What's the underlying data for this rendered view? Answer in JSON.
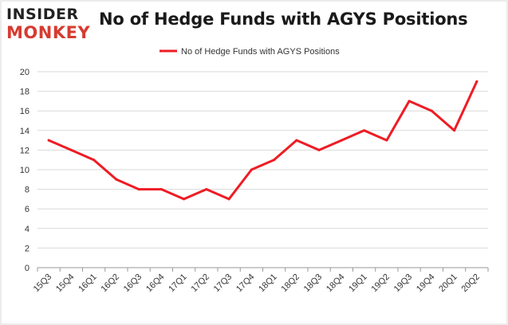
{
  "brand": {
    "line1": "INSIDER",
    "line2": "MONKEY",
    "color": "#d63b2f"
  },
  "chart_data": {
    "type": "line",
    "title": "No of Hedge Funds with AGYS Positions",
    "categories": [
      "15Q3",
      "15Q4",
      "16Q1",
      "16Q2",
      "16Q3",
      "16Q4",
      "17Q1",
      "17Q2",
      "17Q3",
      "17Q4",
      "18Q1",
      "18Q2",
      "18Q3",
      "18Q4",
      "19Q1",
      "19Q2",
      "19Q3",
      "19Q4",
      "20Q1",
      "20Q2"
    ],
    "series": [
      {
        "name": "No of Hedge Funds with AGYS Positions",
        "values": [
          13,
          12,
          11,
          9,
          8,
          8,
          7,
          8,
          7,
          10,
          11,
          13,
          12,
          13,
          14,
          13,
          17,
          16,
          14,
          19
        ],
        "color": "#ee1c25"
      }
    ],
    "ylim": [
      0,
      20
    ],
    "yticks": [
      0,
      2,
      4,
      6,
      8,
      10,
      12,
      14,
      16,
      18,
      20
    ],
    "xlabel": "",
    "ylabel": "",
    "grid": true,
    "legend": "top-center"
  }
}
